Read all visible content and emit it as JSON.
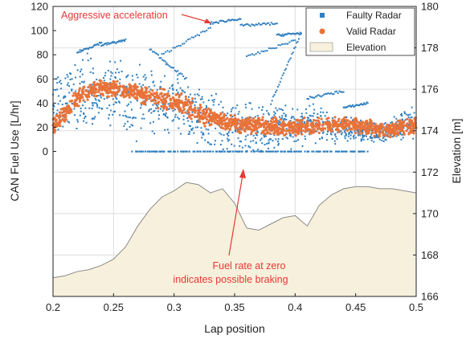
{
  "chart_data": {
    "type": "scatter",
    "xlabel": "Lap position",
    "ylabel_left": "CAN Fuel Use [L/hr]",
    "ylabel_right": "Elevation [m]",
    "xlim": [
      0.2,
      0.5
    ],
    "ylim_left": [
      -120,
      120
    ],
    "ylim_right": [
      166,
      180
    ],
    "x_ticks": [
      "0.2",
      "0.25",
      "0.3",
      "0.35",
      "0.4",
      "0.45",
      "0.5"
    ],
    "y_left_ticks": [
      "0",
      "20",
      "40",
      "60",
      "80",
      "100",
      "120"
    ],
    "y_right_ticks": [
      "166",
      "168",
      "170",
      "172",
      "174",
      "176",
      "178",
      "180"
    ],
    "grid": true,
    "legend_position": "top-right",
    "series": [
      {
        "name": "Faulty Radar",
        "color": "#2f7fc0",
        "marker": "square",
        "axis": "left",
        "x": [
          0.2,
          0.21,
          0.22,
          0.23,
          0.24,
          0.25,
          0.26,
          0.27,
          0.28,
          0.29,
          0.3,
          0.31,
          0.32,
          0.33,
          0.34,
          0.35,
          0.36,
          0.37,
          0.38,
          0.39,
          0.4,
          0.41,
          0.42,
          0.43,
          0.44,
          0.45,
          0.46,
          0.47,
          0.48,
          0.49,
          0.5
        ],
        "y": [
          35,
          42,
          48,
          52,
          50,
          48,
          45,
          42,
          40,
          42,
          40,
          35,
          30,
          26,
          22,
          20,
          18,
          18,
          18,
          20,
          20,
          22,
          22,
          20,
          20,
          18,
          16,
          16,
          18,
          22,
          28
        ],
        "spread": [
          25,
          30,
          35,
          35,
          30,
          30,
          35,
          35,
          30,
          30,
          35,
          30,
          30,
          30,
          28,
          25,
          25,
          25,
          22,
          20,
          20,
          18,
          18,
          15,
          12,
          10,
          10,
          10,
          10,
          15,
          20
        ],
        "zero_band": [
          0.265,
          0.46
        ],
        "streaks": [
          {
            "x": [
              0.22,
              0.24
            ],
            "y": [
              82,
              90
            ]
          },
          {
            "x": [
              0.24,
              0.26
            ],
            "y": [
              88,
              92
            ]
          },
          {
            "x": [
              0.29,
              0.33
            ],
            "y": [
              80,
              102
            ]
          },
          {
            "x": [
              0.33,
              0.355
            ],
            "y": [
              106,
              110
            ]
          },
          {
            "x": [
              0.355,
              0.385
            ],
            "y": [
              104,
              106
            ]
          },
          {
            "x": [
              0.385,
              0.405
            ],
            "y": [
              96,
              98
            ]
          },
          {
            "x": [
              0.36,
              0.4
            ],
            "y": [
              78,
              92
            ]
          },
          {
            "x": [
              0.38,
              0.405
            ],
            "y": [
              40,
              98
            ]
          },
          {
            "x": [
              0.28,
              0.31
            ],
            "y": [
              85,
              60
            ]
          },
          {
            "x": [
              0.41,
              0.44
            ],
            "y": [
              44,
              50
            ]
          },
          {
            "x": [
              0.44,
              0.46
            ],
            "y": [
              36,
              40
            ]
          }
        ]
      },
      {
        "name": "Valid Radar",
        "color": "#e8733a",
        "marker": "circle",
        "axis": "left",
        "x": [
          0.2,
          0.21,
          0.22,
          0.23,
          0.24,
          0.25,
          0.26,
          0.27,
          0.28,
          0.29,
          0.3,
          0.31,
          0.32,
          0.33,
          0.34,
          0.35,
          0.36,
          0.37,
          0.38,
          0.39,
          0.4,
          0.41,
          0.42,
          0.43,
          0.44,
          0.45,
          0.46,
          0.47,
          0.48,
          0.49,
          0.5
        ],
        "y": [
          20,
          32,
          44,
          50,
          52,
          52,
          50,
          48,
          45,
          43,
          42,
          38,
          32,
          28,
          25,
          23,
          22,
          22,
          21,
          20,
          20,
          21,
          22,
          22,
          22,
          22,
          20,
          18,
          18,
          20,
          22
        ],
        "spread": [
          8,
          8,
          8,
          8,
          8,
          8,
          8,
          8,
          10,
          10,
          10,
          10,
          10,
          9,
          8,
          8,
          8,
          8,
          8,
          8,
          8,
          8,
          8,
          7,
          7,
          7,
          7,
          7,
          7,
          7,
          8
        ]
      },
      {
        "name": "Elevation",
        "color": "#f7f0dc",
        "edge": "#8a8a8a",
        "type": "area",
        "axis": "right",
        "x": [
          0.2,
          0.21,
          0.22,
          0.23,
          0.24,
          0.25,
          0.26,
          0.27,
          0.28,
          0.29,
          0.3,
          0.31,
          0.32,
          0.33,
          0.34,
          0.35,
          0.36,
          0.37,
          0.38,
          0.39,
          0.4,
          0.41,
          0.42,
          0.43,
          0.44,
          0.45,
          0.46,
          0.47,
          0.48,
          0.49,
          0.5
        ],
        "y": [
          166.9,
          167.0,
          167.2,
          167.3,
          167.5,
          167.8,
          168.4,
          169.4,
          170.2,
          170.8,
          171.1,
          171.5,
          171.4,
          171.0,
          171.2,
          170.5,
          169.3,
          169.2,
          169.5,
          169.8,
          169.9,
          169.4,
          170.4,
          170.9,
          171.2,
          171.3,
          171.3,
          171.2,
          171.2,
          171.1,
          171.0
        ]
      }
    ],
    "annotations": [
      {
        "text": "Aggressive acceleration",
        "color": "#e53935"
      },
      {
        "text": "Fuel rate at zero",
        "color": "#e53935"
      },
      {
        "text": "indicates possible braking",
        "color": "#e53935"
      }
    ]
  }
}
